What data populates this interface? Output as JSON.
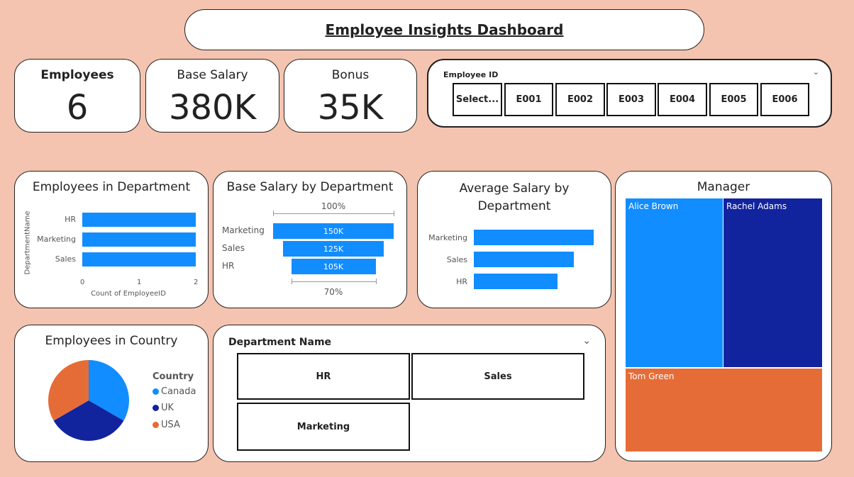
{
  "header": {
    "title": "Employee Insights Dashboard"
  },
  "kpis": {
    "employees": {
      "label": "Employees",
      "value": "6"
    },
    "base_salary": {
      "label": "Base Salary",
      "value": "380K"
    },
    "bonus": {
      "label": "Bonus",
      "value": "35K"
    }
  },
  "employee_slicer": {
    "title": "Employee ID",
    "options": [
      "Select...",
      "E001",
      "E002",
      "E003",
      "E004",
      "E005",
      "E006"
    ]
  },
  "dept_slicer": {
    "title": "Department Name",
    "options": [
      "HR",
      "Sales",
      "Marketing"
    ]
  },
  "colors": {
    "blue": "#118dff",
    "navy": "#12239e",
    "orange": "#e66c37"
  },
  "icons": {
    "dropdown": "chevron-down-icon"
  },
  "chart_data": [
    {
      "type": "bar",
      "title": "Employees in Department",
      "categories": [
        "HR",
        "Marketing",
        "Sales"
      ],
      "values": [
        2,
        2,
        2
      ],
      "xlabel": "Count of EmployeeID",
      "ylabel": "DepartmentName",
      "xticks": [
        "0",
        "1",
        "2"
      ],
      "xlim": [
        0,
        2
      ]
    },
    {
      "type": "funnel",
      "title": "Base Salary by Department",
      "categories": [
        "Marketing",
        "Sales",
        "HR"
      ],
      "values": [
        150,
        125,
        105
      ],
      "value_labels": [
        "150K",
        "125K",
        "105K"
      ],
      "top_percent": "100%",
      "bottom_percent": "70%"
    },
    {
      "type": "bar",
      "title": "Average Salary by Department",
      "categories": [
        "Marketing",
        "Sales",
        "HR"
      ],
      "values": [
        150,
        125,
        105
      ]
    },
    {
      "type": "pie",
      "title": "Employees in Country",
      "legend_title": "Country",
      "categories": [
        "Canada",
        "UK",
        "USA"
      ],
      "values": [
        2,
        2,
        2
      ]
    },
    {
      "type": "treemap",
      "title": "Manager",
      "categories": [
        "Alice Brown",
        "Rachel Adams",
        "Tom Green"
      ],
      "values": [
        2,
        2,
        2
      ]
    }
  ]
}
